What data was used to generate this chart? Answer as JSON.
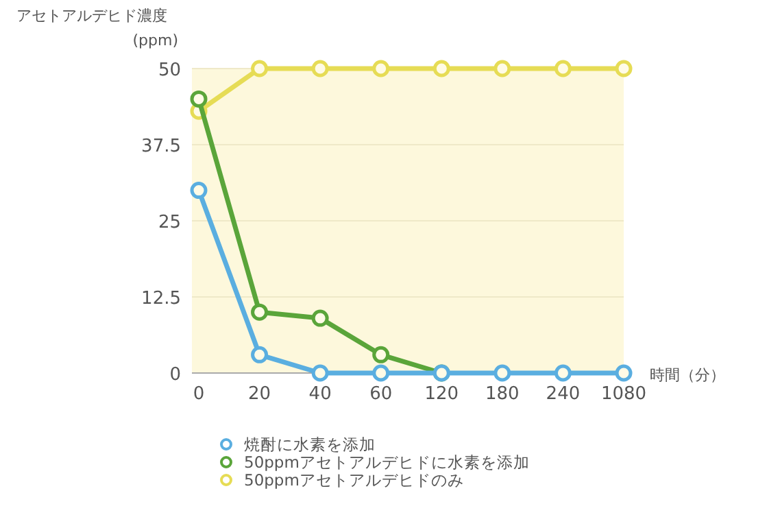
{
  "chart_data": {
    "type": "line",
    "ylabel": "アセトアルデヒド濃度\n(ppm)",
    "xlabel": "時間（分）",
    "categories": [
      "0",
      "20",
      "40",
      "60",
      "120",
      "180",
      "240",
      "1080"
    ],
    "ylim": [
      0,
      50
    ],
    "yticks": [
      0,
      12.5,
      25,
      37.5,
      50
    ],
    "grid": "y",
    "marker": "circle",
    "line_style": "solid",
    "legend": "bottom",
    "series": [
      {
        "name": "50ppmアセトアルデヒドのみ",
        "color": "#e6dc55",
        "values": [
          43,
          50,
          50,
          50,
          50,
          50,
          50,
          50
        ]
      },
      {
        "name": "50ppmアセトアルデヒドに水素を添加",
        "color": "#5aa53a",
        "values": [
          45,
          10,
          9,
          3,
          0,
          null,
          null,
          null
        ]
      },
      {
        "name": "焼酎に水素を添加",
        "color": "#5aaee0",
        "values": [
          30,
          3,
          0,
          0,
          0,
          0,
          0,
          0
        ]
      }
    ]
  }
}
